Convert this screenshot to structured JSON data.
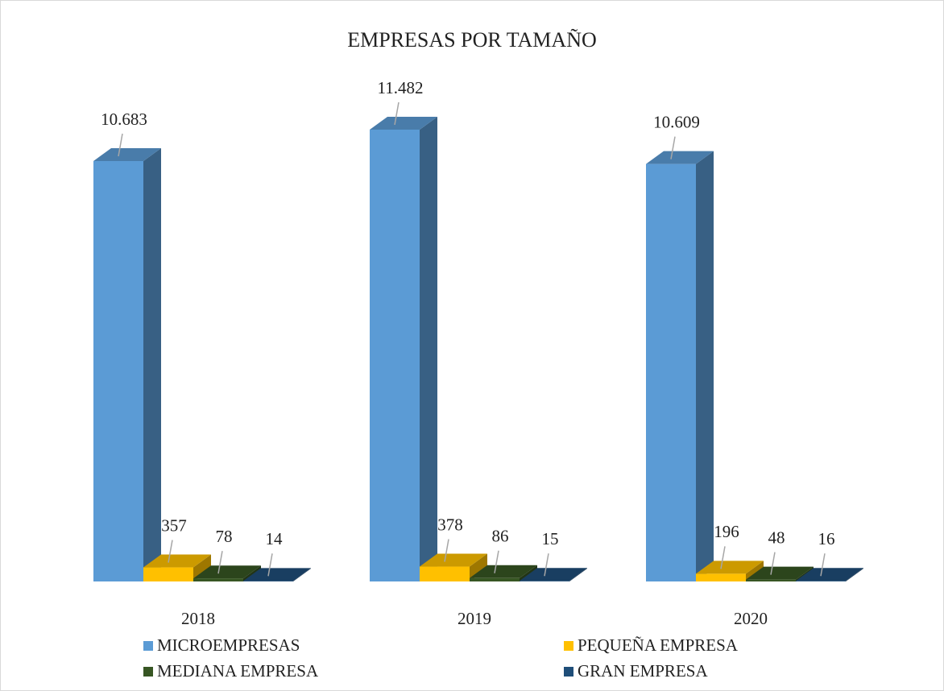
{
  "chart_data": {
    "type": "bar3d",
    "title": "EMPRESAS POR TAMAÑO",
    "categories": [
      "2018",
      "2019",
      "2020"
    ],
    "series": [
      {
        "name": "MICROEMPRESAS",
        "color": "#5b9bd5",
        "values": [
          10683,
          11482,
          10609
        ],
        "value_labels": [
          "10.683",
          "11.482",
          "10.609"
        ]
      },
      {
        "name": "PEQUEÑA EMPRESA",
        "color": "#ffc000",
        "values": [
          357,
          378,
          196
        ]
      },
      {
        "name": "MEDIANA EMPRESA",
        "color": "#375623",
        "values": [
          78,
          86,
          48
        ]
      },
      {
        "name": "GRAN EMPRESA",
        "color": "#1f4e79",
        "values": [
          14,
          15,
          16
        ]
      }
    ],
    "legend": "bottom"
  }
}
